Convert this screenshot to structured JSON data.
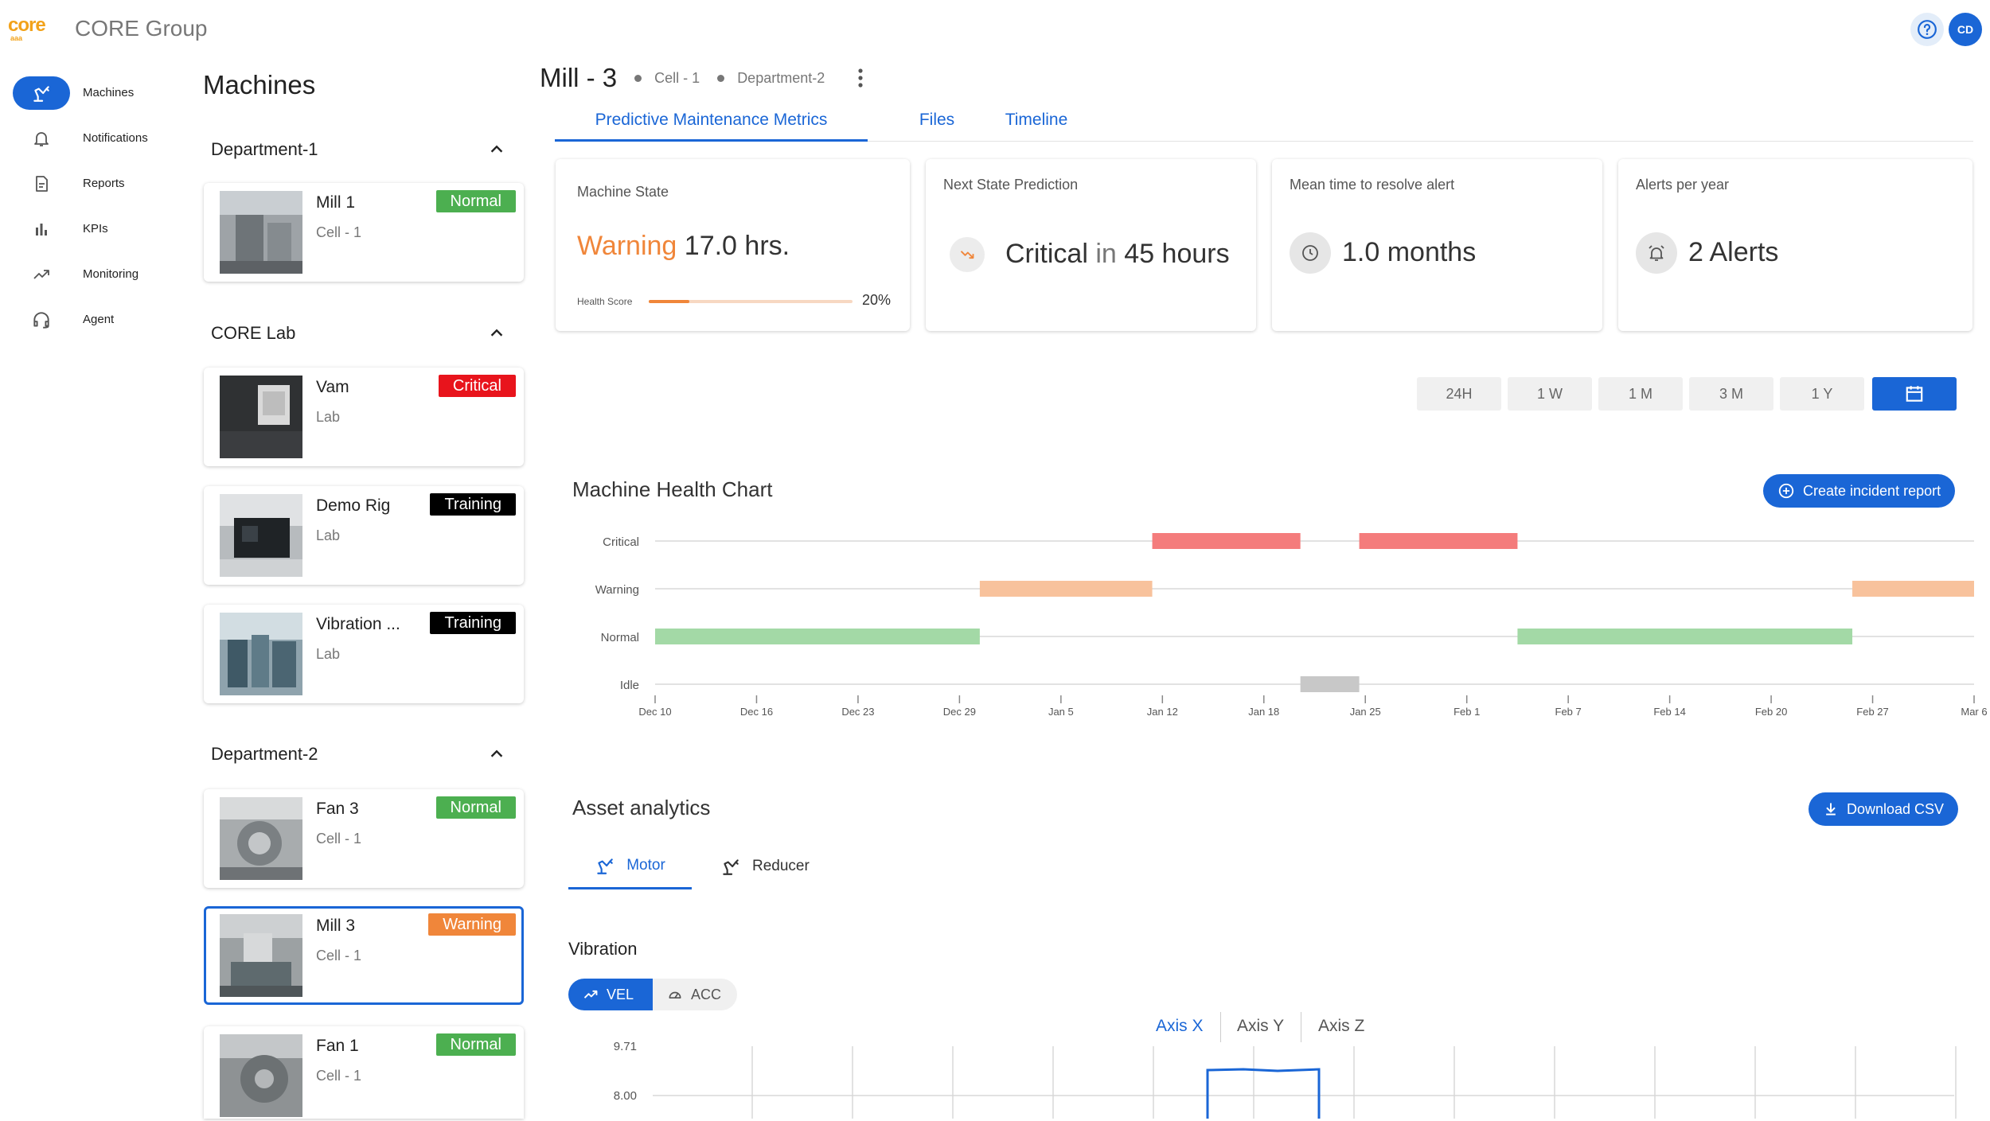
{
  "app": {
    "logo_text": "core",
    "logo_subtext": "aaa",
    "title": "CORE Group",
    "avatar_initials": "CD",
    "help_icon": "help-circle-icon"
  },
  "nav": {
    "items": [
      {
        "label": "Machines",
        "icon": "robot-arm-icon",
        "active": true
      },
      {
        "label": "Notifications",
        "icon": "bell-icon"
      },
      {
        "label": "Reports",
        "icon": "report-icon"
      },
      {
        "label": "KPIs",
        "icon": "bar-chart-icon"
      },
      {
        "label": "Monitoring",
        "icon": "trending-up-icon"
      },
      {
        "label": "Agent",
        "icon": "headset-icon"
      }
    ]
  },
  "machine_list": {
    "title": "Machines",
    "groups": [
      {
        "name": "Department-1"
      },
      {
        "name": "CORE Lab"
      },
      {
        "name": "Department-2"
      }
    ],
    "machines": [
      {
        "name": "Mill 1",
        "sub": "Cell - 1",
        "status": "Normal",
        "color": "#4caf50"
      },
      {
        "name": "Vam",
        "sub": "Lab",
        "status": "Critical",
        "color": "#e8141c"
      },
      {
        "name": "Demo Rig",
        "sub": "Lab",
        "status": "Training",
        "color": "#000000"
      },
      {
        "name": "Vibration ...",
        "sub": "Lab",
        "status": "Training",
        "color": "#000000"
      },
      {
        "name": "Fan 3",
        "sub": "Cell - 1",
        "status": "Normal",
        "color": "#4caf50"
      },
      {
        "name": "Mill 3",
        "sub": "Cell - 1",
        "status": "Warning",
        "color": "#f0863a"
      },
      {
        "name": "Fan 1",
        "sub": "Cell - 1",
        "status": "Normal",
        "color": "#4caf50"
      }
    ]
  },
  "header": {
    "title": "Mill - 3",
    "cell": "Cell - 1",
    "department": "Department-2"
  },
  "tabs": [
    "Predictive Maintenance Metrics",
    "Files",
    "Timeline"
  ],
  "metrics": {
    "state": {
      "title": "Machine State",
      "status": "Warning",
      "hours": "17.0 hrs.",
      "health_label": "Health Score",
      "health_value": "20%",
      "health_fraction": 0.2
    },
    "prediction": {
      "title": "Next State Prediction",
      "state": "Critical",
      "in_text": "in",
      "hours": "45 hours"
    },
    "mttr": {
      "title": "Mean time to resolve alert",
      "value": "1.0 months"
    },
    "alerts": {
      "title": "Alerts per year",
      "value": "2 Alerts"
    }
  },
  "ranges": [
    "24H",
    "1 W",
    "1 M",
    "3 M",
    "1 Y"
  ],
  "health_chart": {
    "title": "Machine Health Chart",
    "incident_button": "Create incident report"
  },
  "chart_data": [
    {
      "type": "gantt",
      "title": "Machine Health Chart",
      "states": [
        "Critical",
        "Warning",
        "Normal",
        "Idle"
      ],
      "state_colors": {
        "Critical": "#f47c7c",
        "Warning": "#f8c29c",
        "Normal": "#a3d9a6",
        "Idle": "#c8c8c8"
      },
      "x_ticks": [
        "Dec 10",
        "Dec 16",
        "Dec 23",
        "Dec 29",
        "Jan 5",
        "Jan 12",
        "Jan 18",
        "Jan 25",
        "Feb 1",
        "Feb 7",
        "Feb 14",
        "Feb 20",
        "Feb 27",
        "Mar 6"
      ],
      "segments": [
        {
          "state": "Normal",
          "start": 0,
          "end": 3.2
        },
        {
          "state": "Warning",
          "start": 3.2,
          "end": 4.9
        },
        {
          "state": "Critical",
          "start": 4.9,
          "end": 6.36
        },
        {
          "state": "Idle",
          "start": 6.36,
          "end": 6.94
        },
        {
          "state": "Critical",
          "start": 6.94,
          "end": 8.5
        },
        {
          "state": "Normal",
          "start": 8.5,
          "end": 11.8
        },
        {
          "state": "Warning",
          "start": 11.8,
          "end": 13
        }
      ]
    },
    {
      "type": "line",
      "title": "Vibration",
      "y_ticks": [
        "9.71",
        "8.00"
      ],
      "series": [
        {
          "name": "Axis X",
          "color": "#1a66d6"
        }
      ]
    }
  ],
  "asset": {
    "title": "Asset analytics",
    "download_button": "Download CSV",
    "tabs": [
      "Motor",
      "Reducer"
    ],
    "vibration_title": "Vibration",
    "toggle": [
      "VEL",
      "ACC"
    ],
    "axes": [
      "Axis X",
      "Axis Y",
      "Axis Z"
    ]
  }
}
